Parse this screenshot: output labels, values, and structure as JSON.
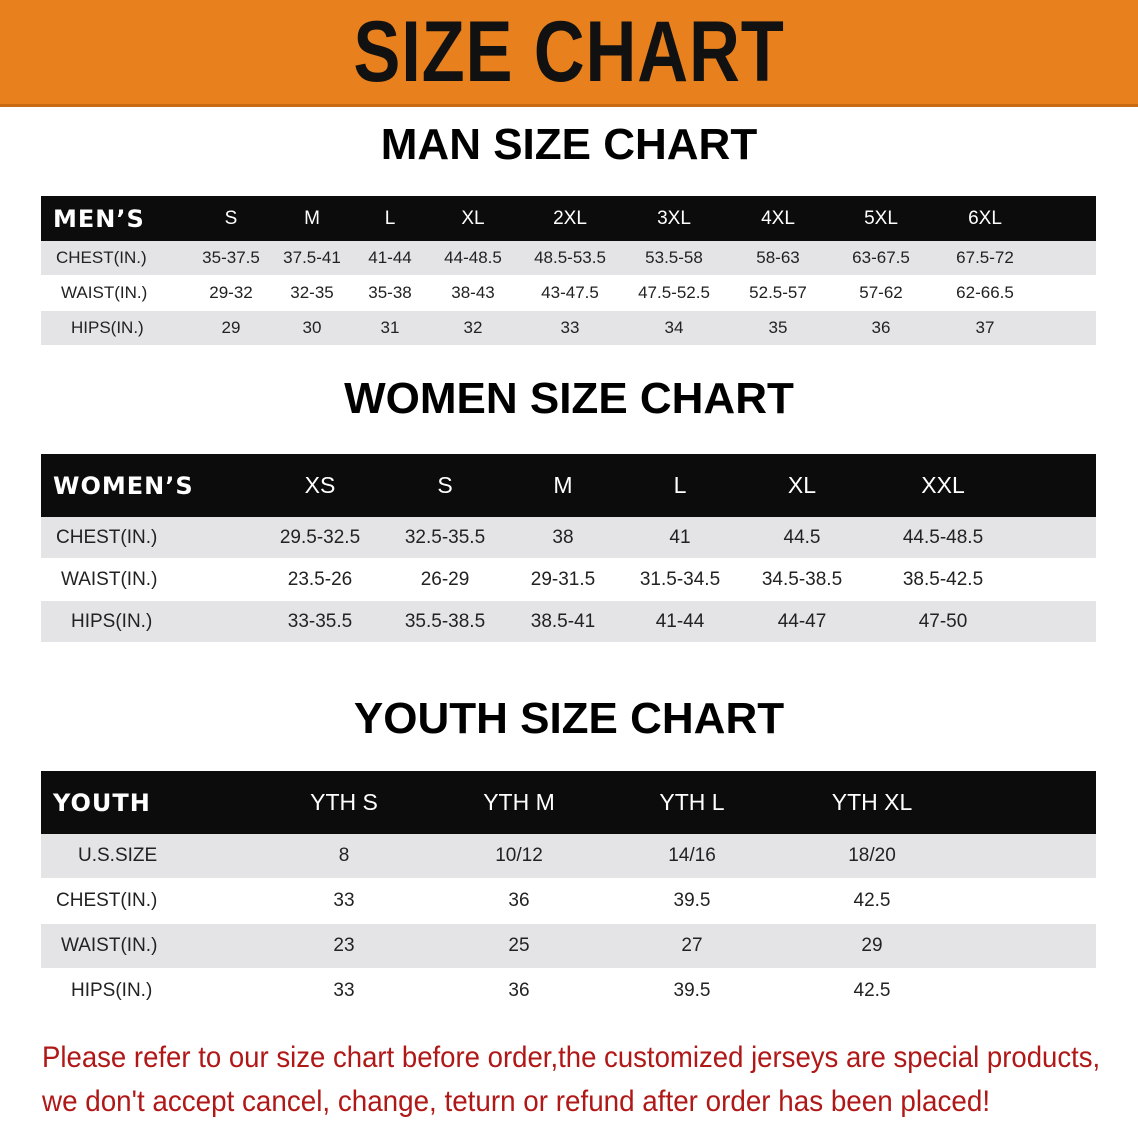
{
  "banner": {
    "title": "SIZE CHART",
    "color": "#e8801e"
  },
  "men": {
    "title": "MAN SIZE CHART",
    "header": "MEN’S",
    "sizes": [
      "S",
      "M",
      "L",
      "XL",
      "2XL",
      "3XL",
      "4XL",
      "5XL",
      "6XL"
    ],
    "rows": [
      {
        "label": "CHEST(IN.)",
        "values": [
          "35-37.5",
          "37.5-41",
          "41-44",
          "44-48.5",
          "48.5-53.5",
          "53.5-58",
          "58-63",
          "63-67.5",
          "67.5-72"
        ]
      },
      {
        "label": "WAIST(IN.)",
        "values": [
          "29-32",
          "32-35",
          "35-38",
          "38-43",
          "43-47.5",
          "47.5-52.5",
          "52.5-57",
          "57-62",
          "62-66.5"
        ]
      },
      {
        "label": "HIPS(IN.)",
        "values": [
          "29",
          "30",
          "31",
          "32",
          "33",
          "34",
          "35",
          "36",
          "37"
        ]
      }
    ]
  },
  "women": {
    "title": "WOMEN SIZE CHART",
    "header": "WOMEN’S",
    "sizes": [
      "XS",
      "S",
      "M",
      "L",
      "XL",
      "XXL"
    ],
    "rows": [
      {
        "label": "CHEST(IN.)",
        "values": [
          "29.5-32.5",
          "32.5-35.5",
          "38",
          "41",
          "44.5",
          "44.5-48.5"
        ]
      },
      {
        "label": "WAIST(IN.)",
        "values": [
          "23.5-26",
          "26-29",
          "29-31.5",
          "31.5-34.5",
          "34.5-38.5",
          "38.5-42.5"
        ]
      },
      {
        "label": "HIPS(IN.)",
        "values": [
          "33-35.5",
          "35.5-38.5",
          "38.5-41",
          "41-44",
          "44-47",
          "47-50"
        ]
      }
    ]
  },
  "youth": {
    "title": "YOUTH SIZE CHART",
    "header": "YOUTH",
    "sizes": [
      "YTH S",
      "YTH M",
      "YTH L",
      "YTH XL"
    ],
    "rows": [
      {
        "label": "U.S.SIZE",
        "values": [
          "8",
          "10/12",
          "14/16",
          "18/20"
        ]
      },
      {
        "label": "CHEST(IN.)",
        "values": [
          "33",
          "36",
          "39.5",
          "42.5"
        ]
      },
      {
        "label": "WAIST(IN.)",
        "values": [
          "23",
          "25",
          "27",
          "29"
        ]
      },
      {
        "label": "HIPS(IN.)",
        "values": [
          "33",
          "36",
          "39.5",
          "42.5"
        ]
      }
    ]
  },
  "notice": {
    "line1": "Please refer to our size chart before order,the customized jerseys are special products,",
    "line2": "we don't accept cancel, change, teturn or refund after order has been placed!",
    "color": "#b01818"
  }
}
